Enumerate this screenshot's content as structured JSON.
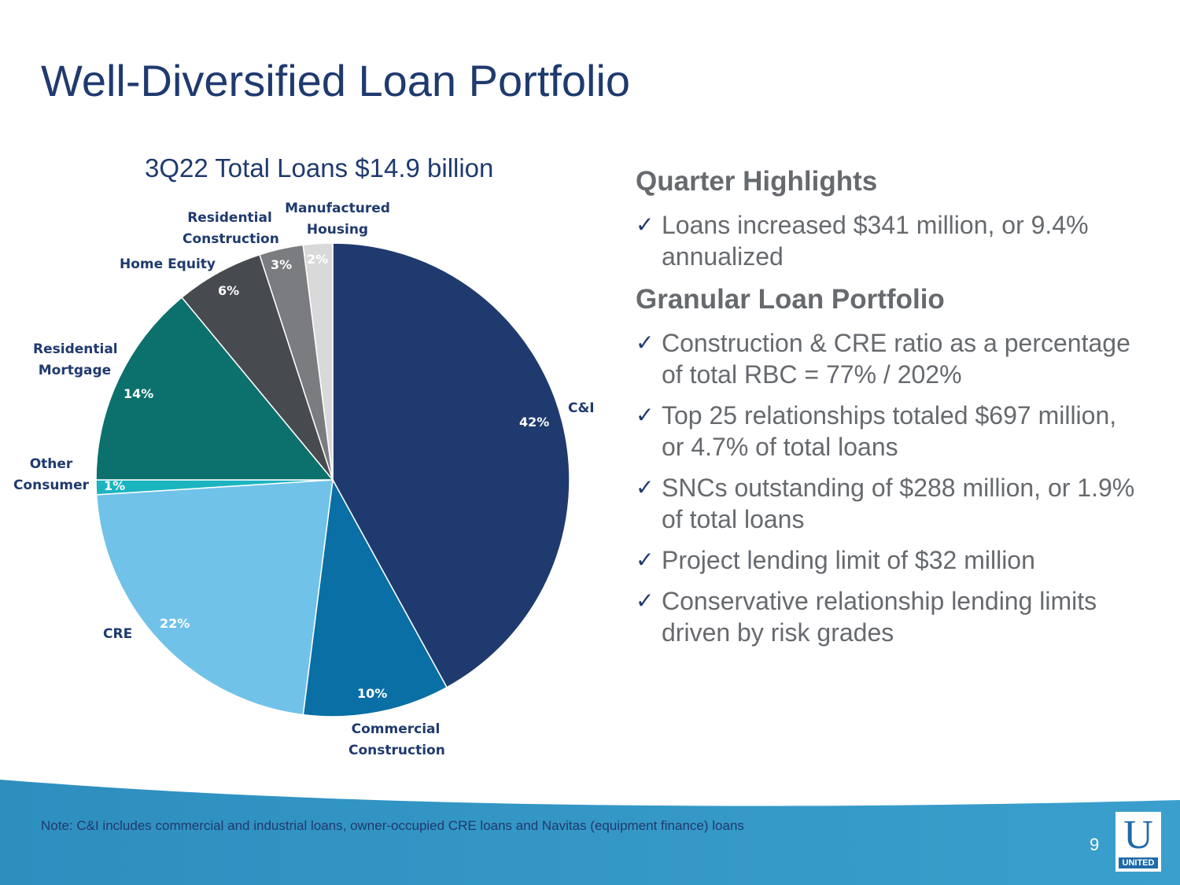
{
  "slide": {
    "title": "Well-Diversified Loan Portfolio",
    "page_number": "9",
    "note": "Note: C&I includes commercial and industrial loans, owner-occupied CRE loans and Navitas (equipment finance) loans",
    "logo_letter": "U",
    "logo_word": "UNITED"
  },
  "chart_data": {
    "type": "pie",
    "title": "3Q22 Total Loans $14.9 billion",
    "slices": [
      {
        "label": "C&I",
        "value": 42,
        "value_label": "42%",
        "color": "#1f3a6e"
      },
      {
        "label": "Commercial Construction",
        "value": 10,
        "value_label": "10%",
        "color": "#0a6fa5"
      },
      {
        "label": "CRE",
        "value": 22,
        "value_label": "22%",
        "color": "#71c2e8"
      },
      {
        "label": "Other Consumer",
        "value": 1,
        "value_label": "1%",
        "color": "#1bb4bf"
      },
      {
        "label": "Residential Mortgage",
        "value": 14,
        "value_label": "14%",
        "color": "#0c716d"
      },
      {
        "label": "Home Equity",
        "value": 6,
        "value_label": "6%",
        "color": "#474b4f"
      },
      {
        "label": "Residential Construction",
        "value": 3,
        "value_label": "3%",
        "color": "#7a7c7f"
      },
      {
        "label": "Manufactured Housing",
        "value": 2,
        "value_label": "2%",
        "color": "#d9d9d9"
      }
    ]
  },
  "highlights": {
    "quarter_heading": "Quarter Highlights",
    "quarter_items": [
      "Loans increased $341 million, or 9.4% annualized"
    ],
    "granular_heading": "Granular Loan Portfolio",
    "granular_items": [
      "Construction & CRE ratio as a percentage of total RBC = 77% / 202%",
      "Top 25 relationships totaled $697 million, or 4.7% of total loans",
      "SNCs outstanding of $288 million, or 1.9% of total loans",
      "Project lending limit of $32 million",
      "Conservative relationship lending limits driven by risk grades"
    ],
    "check_glyph": "✓"
  }
}
